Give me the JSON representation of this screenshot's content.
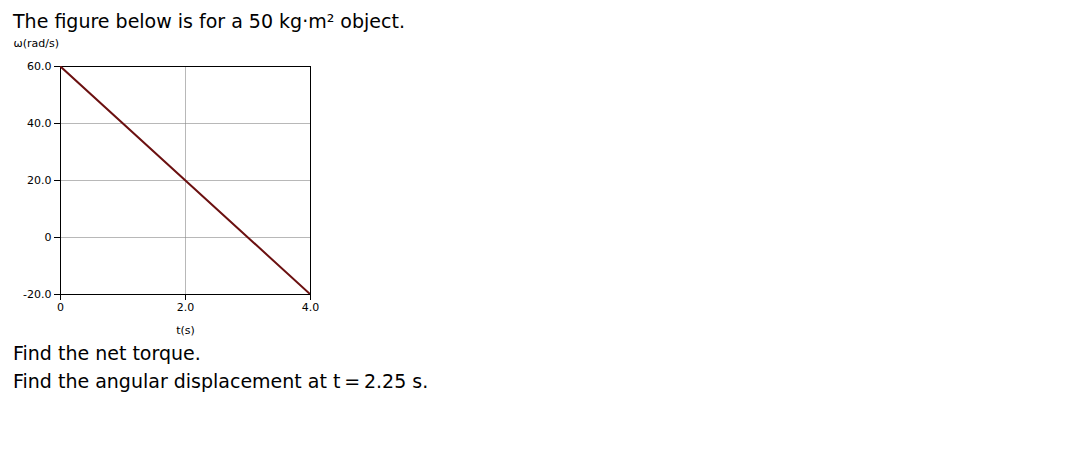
{
  "chart_data": {
    "type": "line",
    "title": "The figure below is for a 50 kg·m² object.",
    "x": [
      0,
      4.0
    ],
    "values": [
      60.0,
      -20.0
    ],
    "color": "#6B1010",
    "xlabel": "t(s)",
    "ylabel": "ω(rad/s)",
    "xlim": [
      0,
      4.0
    ],
    "ylim": [
      -20.0,
      60.0
    ],
    "xticks": [
      0,
      {
        "value": 2.0,
        "label": "2.0"
      },
      {
        "value": 4.0,
        "label": "4.0"
      }
    ],
    "yticks": [
      {
        "value": -20.0,
        "label": "-20.0"
      },
      0,
      {
        "value": 20.0,
        "label": "20.0"
      },
      {
        "value": 40.0,
        "label": "40.0"
      },
      {
        "value": 60.0,
        "label": "60.0"
      }
    ],
    "grid": true,
    "annotations": [
      "Find the net torque.",
      "Find the angular displacement at t = 2.25 s."
    ]
  }
}
